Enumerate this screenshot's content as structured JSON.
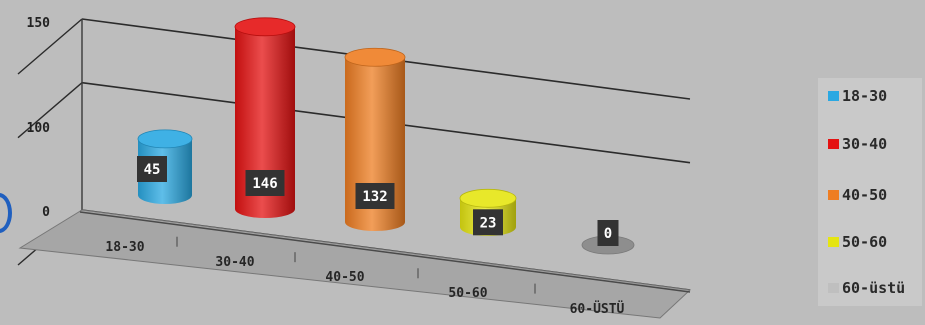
{
  "chart_data": {
    "type": "bar",
    "categories": [
      "18-30",
      "30-40",
      "40-50",
      "50-60",
      "60-ÜSTÜ"
    ],
    "values": [
      45,
      146,
      132,
      23,
      0
    ],
    "colors": [
      "#2aa8e2",
      "#e41212",
      "#ee7d22",
      "#e5e512",
      "#9a9a9a"
    ],
    "ylim": [
      0,
      150
    ],
    "yticks": [
      0,
      100,
      150
    ],
    "grid": true,
    "legend": {
      "position": "right",
      "entries": [
        {
          "label": "18-30",
          "color": "#2aa8e2"
        },
        {
          "label": "30-40",
          "color": "#e41212"
        },
        {
          "label": "40-50",
          "color": "#ee7d22"
        },
        {
          "label": "50-60",
          "color": "#e5e512"
        },
        {
          "label": "60-üstü",
          "color": "#bfbfbf"
        }
      ]
    }
  }
}
